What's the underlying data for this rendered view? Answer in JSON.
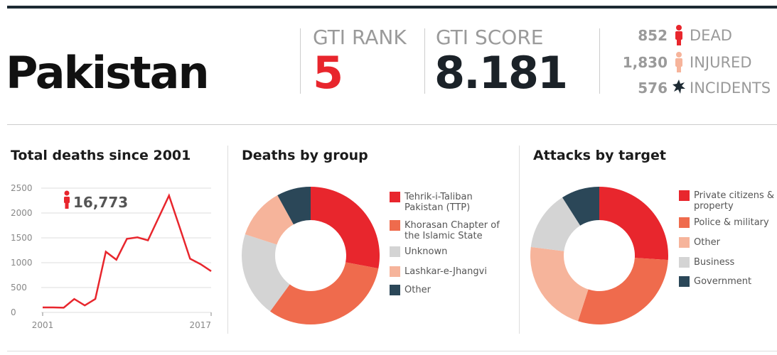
{
  "header": {
    "country": "Pakistan",
    "rank_label": "GTI RANK",
    "rank": "5",
    "score_label": "GTI SCORE",
    "score": "8.181",
    "stats": [
      {
        "value": "852",
        "label": "DEAD"
      },
      {
        "value": "1,830",
        "label": "INJURED"
      },
      {
        "value": "576",
        "label": "INCIDENTS"
      }
    ]
  },
  "chart_data": [
    {
      "type": "line",
      "title": "Total deaths since 2001",
      "annotation": "16,773",
      "x": [
        2001,
        2002,
        2003,
        2004,
        2005,
        2006,
        2007,
        2008,
        2009,
        2010,
        2011,
        2012,
        2013,
        2014,
        2015,
        2016,
        2017
      ],
      "values": [
        100,
        100,
        95,
        270,
        140,
        270,
        1220,
        1060,
        1480,
        1510,
        1450,
        1900,
        2350,
        1720,
        1080,
        970,
        830
      ],
      "color": "#e8262d",
      "xlim": [
        2001,
        2017
      ],
      "xticks": [
        2001,
        2017
      ],
      "ylim": [
        0,
        2500
      ],
      "yticks": [
        0,
        500,
        1000,
        1500,
        2000,
        2500
      ],
      "grid": true
    },
    {
      "type": "donut",
      "title": "Deaths by group",
      "categories": [
        "Tehrik-i-Taliban Pakistan (TTP)",
        "Khorasan Chapter of the Islamic State",
        "Unknown",
        "Lashkar-e-Jhangvi",
        "Other"
      ],
      "values": [
        28,
        32,
        20,
        12,
        8
      ],
      "colors": [
        "#e8262d",
        "#ef6b4d",
        "#d4d4d4",
        "#f6b49b",
        "#2b4758"
      ]
    },
    {
      "type": "donut",
      "title": "Attacks by target",
      "categories": [
        "Private citizens & property",
        "Police & military",
        "Other",
        "Business",
        "Government"
      ],
      "values": [
        26,
        29,
        22,
        14,
        9
      ],
      "colors": [
        "#e8262d",
        "#ef6b4d",
        "#f6b49b",
        "#d4d4d4",
        "#2b4758"
      ]
    }
  ]
}
